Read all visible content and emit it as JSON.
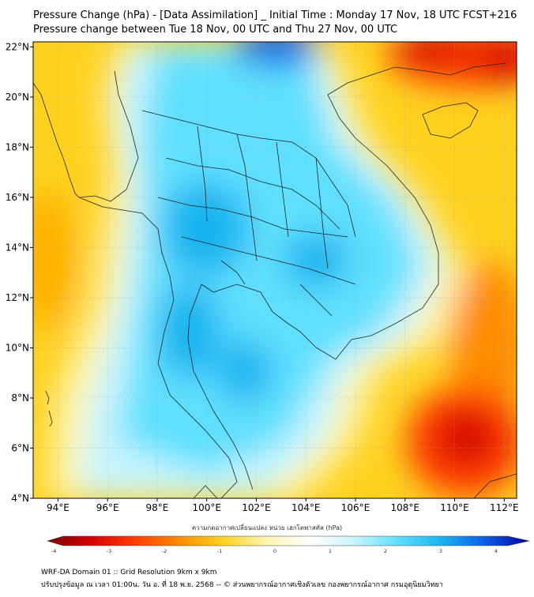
{
  "title": {
    "line1": "Pressure Change (hPa) - [Data Assimilation] _ Initial Time : Monday 17 Nov, 18 UTC FCST+216",
    "line2": "Pressure change between Tue 18 Nov, 00 UTC and Thu 27 Nov, 00 UTC"
  },
  "map": {
    "lon_range": [
      93,
      112.5
    ],
    "lat_range": [
      4,
      22.2
    ],
    "lon_ticks": [
      {
        "value": 94,
        "label": "94°E"
      },
      {
        "value": 96,
        "label": "96°E"
      },
      {
        "value": 98,
        "label": "98°E"
      },
      {
        "value": 100,
        "label": "100°E"
      },
      {
        "value": 102,
        "label": "102°E"
      },
      {
        "value": 104,
        "label": "104°E"
      },
      {
        "value": 106,
        "label": "106°E"
      },
      {
        "value": 108,
        "label": "108°E"
      },
      {
        "value": 110,
        "label": "110°E"
      },
      {
        "value": 112,
        "label": "112°E"
      }
    ],
    "lat_ticks": [
      {
        "value": 4,
        "label": "4°N"
      },
      {
        "value": 6,
        "label": "6°N"
      },
      {
        "value": 8,
        "label": "8°N"
      },
      {
        "value": 10,
        "label": "10°N"
      },
      {
        "value": 12,
        "label": "12°N"
      },
      {
        "value": 14,
        "label": "14°N"
      },
      {
        "value": 16,
        "label": "16°N"
      },
      {
        "value": 18,
        "label": "18°N"
      },
      {
        "value": 20,
        "label": "20°N"
      },
      {
        "value": 22,
        "label": "22°N"
      }
    ],
    "background_color": "#ffd21e",
    "grid": true
  },
  "colorbar": {
    "title": "ความกดอากาศเปลี่ยนแปลง หน่วย เฮกโตพาสคัล (hPa)",
    "min": -4,
    "max": 4,
    "tick_labels": [
      "-4",
      "-3",
      "-2",
      "-1",
      "0",
      "1",
      "2",
      "3",
      "4"
    ],
    "colors": [
      "#7a0000",
      "#d40000",
      "#ff3c00",
      "#ff8c00",
      "#ffd21e",
      "#fff5b0",
      "#ffffff",
      "#c8f5ff",
      "#5ee0ff",
      "#18b4f0",
      "#0a5ce6",
      "#0000a0"
    ]
  },
  "footer": {
    "line1": "WRF-DA Domain 01 :: Grid Resolution 9km x 9km",
    "line2": "ปรับปรุงข้อมูล ณ เวลา 01:00น. วัน อ. ที่ 18 พ.ย. 2568 -- © ส่วนพยากรณ์อากาศเชิงตัวเลข กองพยากรณ์อากาศ กรมอุตุนิยมวิทยา"
  }
}
